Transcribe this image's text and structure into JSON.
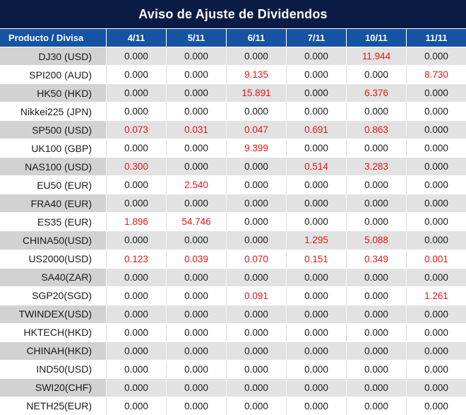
{
  "title": "Aviso de Ajuste de Dividendos",
  "table": {
    "product_header": "Producto / Divisa",
    "date_columns": [
      "4/11",
      "5/11",
      "6/11",
      "7/11",
      "10/11",
      "11/11"
    ],
    "rows": [
      {
        "product": "DJ30 (USD)",
        "values": [
          "0.000",
          "0.000",
          "0.000",
          "0.000",
          "11.944",
          "0.000"
        ],
        "red": [
          4
        ]
      },
      {
        "product": "SPI200 (AUD)",
        "values": [
          "0.000",
          "0.000",
          "9.135",
          "0.000",
          "0.000",
          "8.730"
        ],
        "red": [
          2,
          5
        ]
      },
      {
        "product": "HK50 (HKD)",
        "values": [
          "0.000",
          "0.000",
          "15.891",
          "0.000",
          "6.376",
          "0.000"
        ],
        "red": [
          2,
          4
        ]
      },
      {
        "product": "Nikkei225 (JPN)",
        "values": [
          "0.000",
          "0.000",
          "0.000",
          "0.000",
          "0.000",
          "0.000"
        ],
        "red": []
      },
      {
        "product": "SP500 (USD)",
        "values": [
          "0.073",
          "0.031",
          "0.047",
          "0.691",
          "0.863",
          "0.000"
        ],
        "red": [
          0,
          1,
          2,
          3,
          4
        ]
      },
      {
        "product": "UK100 (GBP)",
        "values": [
          "0.000",
          "0.000",
          "9.399",
          "0.000",
          "0.000",
          "0.000"
        ],
        "red": [
          2
        ]
      },
      {
        "product": "NAS100 (USD)",
        "values": [
          "0.300",
          "0.000",
          "0.000",
          "0.514",
          "3.283",
          "0.000"
        ],
        "red": [
          0,
          3,
          4
        ]
      },
      {
        "product": "EU50 (EUR)",
        "values": [
          "0.000",
          "2.540",
          "0.000",
          "0.000",
          "0.000",
          "0.000"
        ],
        "red": [
          1
        ]
      },
      {
        "product": "FRA40 (EUR)",
        "values": [
          "0.000",
          "0.000",
          "0.000",
          "0.000",
          "0.000",
          "0.000"
        ],
        "red": []
      },
      {
        "product": "ES35 (EUR)",
        "values": [
          "1.896",
          "54.746",
          "0.000",
          "0.000",
          "0.000",
          "0.000"
        ],
        "red": [
          0,
          1
        ]
      },
      {
        "product": "CHINA50(USD)",
        "values": [
          "0.000",
          "0.000",
          "0.000",
          "1.295",
          "5.088",
          "0.000"
        ],
        "red": [
          3,
          4
        ]
      },
      {
        "product": "US2000(USD)",
        "values": [
          "0.123",
          "0.039",
          "0.070",
          "0.151",
          "0.349",
          "0.001"
        ],
        "red": [
          0,
          1,
          2,
          3,
          4,
          5
        ]
      },
      {
        "product": "SA40(ZAR)",
        "values": [
          "0.000",
          "0.000",
          "0.000",
          "0.000",
          "0.000",
          "0.000"
        ],
        "red": []
      },
      {
        "product": "SGP20(SGD)",
        "values": [
          "0.000",
          "0.000",
          "0.091",
          "0.000",
          "0.000",
          "1.261"
        ],
        "red": [
          2,
          5
        ]
      },
      {
        "product": "TWINDEX(USD)",
        "values": [
          "0.000",
          "0.000",
          "0.000",
          "0.000",
          "0.000",
          "0.000"
        ],
        "red": []
      },
      {
        "product": "HKTECH(HKD)",
        "values": [
          "0.000",
          "0.000",
          "0.000",
          "0.000",
          "0.000",
          "0.000"
        ],
        "red": []
      },
      {
        "product": "CHINAH(HKD)",
        "values": [
          "0.000",
          "0.000",
          "0.000",
          "0.000",
          "0.000",
          "0.000"
        ],
        "red": []
      },
      {
        "product": "IND50(USD)",
        "values": [
          "0.000",
          "0.000",
          "0.000",
          "0.000",
          "0.000",
          "0.000"
        ],
        "red": []
      },
      {
        "product": "SWI20(CHF)",
        "values": [
          "0.000",
          "0.000",
          "0.000",
          "0.000",
          "0.000",
          "0.000"
        ],
        "red": []
      },
      {
        "product": "NETH25(EUR)",
        "values": [
          "0.000",
          "0.000",
          "0.000",
          "0.000",
          "0.000",
          "0.000"
        ],
        "red": []
      }
    ]
  },
  "colors": {
    "title_bg": "#0a1c45",
    "header_bg": "#1553a3",
    "row_gray_product": "#d2d2d2",
    "row_gray_data": "#e2e2e2",
    "negative_value_red": "#e81717",
    "text": "#1a1a1a"
  }
}
